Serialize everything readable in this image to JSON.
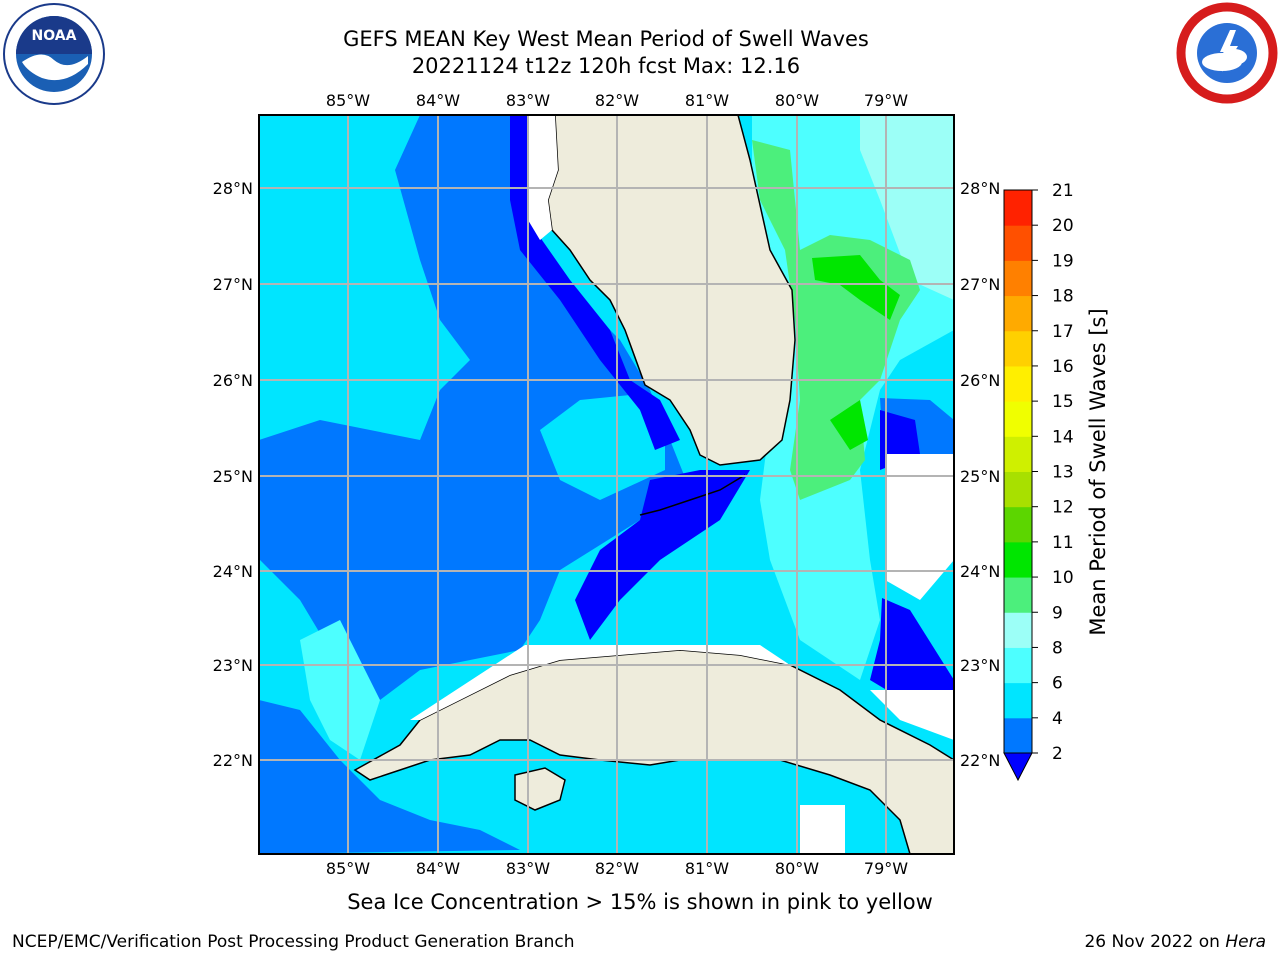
{
  "header": {
    "title_line1": "GEFS MEAN Key West Mean Period of Swell Waves",
    "title_line2": "20221124 t12z 120h fcst   Max: 12.16"
  },
  "logos": {
    "left": "noaa-logo",
    "right": "national-weather-service-logo"
  },
  "map": {
    "lon_labels": [
      "85°W",
      "84°W",
      "83°W",
      "82°W",
      "81°W",
      "80°W",
      "79°W"
    ],
    "lat_labels": [
      "28°N",
      "27°N",
      "26°N",
      "25°N",
      "24°N",
      "23°N",
      "22°N"
    ],
    "land_color": "#eeecdc",
    "grid_color": "#b4b4b4"
  },
  "colorbar": {
    "label": "Mean Period of Swell Waves [s]",
    "ticks": [
      "2",
      "4",
      "6",
      "8",
      "9",
      "10",
      "11",
      "12",
      "13",
      "14",
      "15",
      "16",
      "17",
      "18",
      "19",
      "20",
      "21"
    ],
    "colors": [
      "#0078ff",
      "#00e5ff",
      "#4dffff",
      "#9cfff7",
      "#4cef7c",
      "#00e600",
      "#5cd600",
      "#a8e000",
      "#cff000",
      "#f0ff00",
      "#ffef00",
      "#ffd000",
      "#ffaa00",
      "#ff8000",
      "#ff5000",
      "#ff2200"
    ],
    "under_color": "#0000ff"
  },
  "footer": {
    "note": "Sea Ice Concentration > 15% is shown in pink to yellow",
    "credit": "NCEP/EMC/Verification Post Processing Product Generation Branch",
    "date": "26 Nov 2022 on",
    "machine": "Hera"
  }
}
